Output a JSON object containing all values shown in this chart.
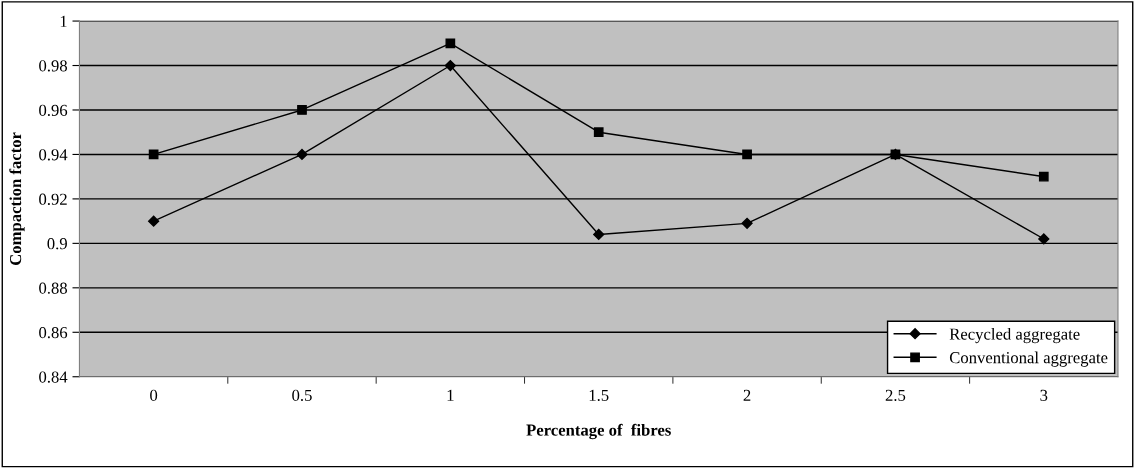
{
  "chart_data": {
    "type": "line",
    "xlabel": "Percentage of  fibres",
    "ylabel": "Compaction factor",
    "categories": [
      "0",
      "0.5",
      "1",
      "1.5",
      "2",
      "2.5",
      "3"
    ],
    "series": [
      {
        "name": "Recycled aggregate",
        "color": "#000000",
        "marker": "diamond",
        "values": [
          0.91,
          0.94,
          0.98,
          0.904,
          0.909,
          0.94,
          0.902
        ]
      },
      {
        "name": "Conventional aggregate",
        "color": "#000000",
        "marker": "square",
        "values": [
          0.94,
          0.96,
          0.99,
          0.95,
          0.94,
          0.94,
          0.93
        ]
      }
    ],
    "ylim": [
      0.84,
      1.0
    ],
    "yticks": [
      0.84,
      0.86,
      0.88,
      0.9,
      0.92,
      0.94,
      0.96,
      0.98,
      1
    ],
    "grid": "y",
    "legend": "bottom right",
    "line_style": "solid"
  }
}
